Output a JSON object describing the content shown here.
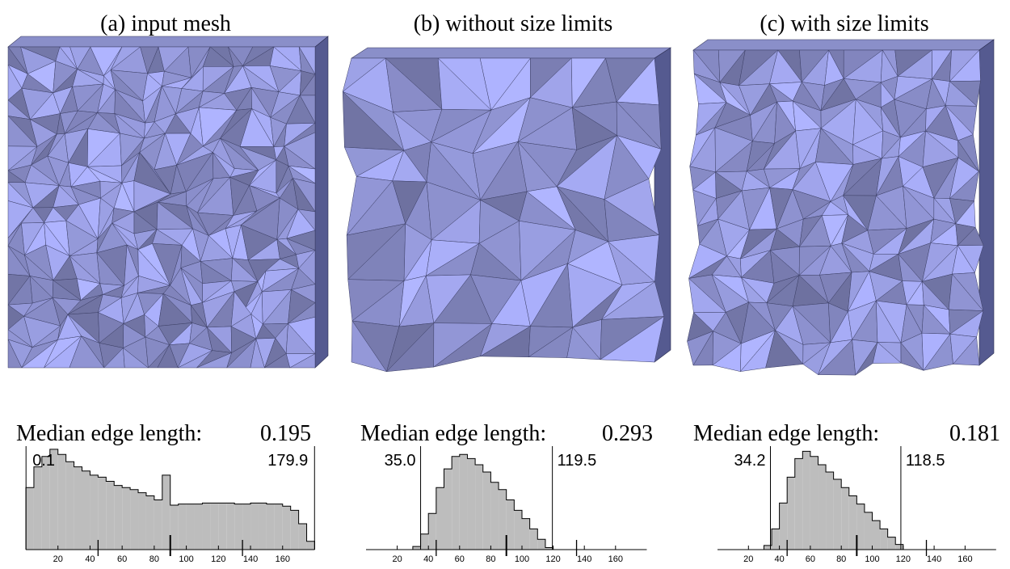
{
  "panels": [
    {
      "caption": "(a) input mesh",
      "median_label": "Median edge length:",
      "median_value": 0.195,
      "histogram": {
        "xlim": [
          0,
          180
        ],
        "xticks": [
          20,
          40,
          60,
          80,
          100,
          120,
          140,
          160
        ],
        "reference_angles": [
          45,
          90,
          135
        ],
        "min_angle": 0.1,
        "max_angle": 179.9,
        "bins": [
          0,
          5,
          10,
          15,
          20,
          25,
          30,
          35,
          40,
          45,
          50,
          55,
          60,
          65,
          70,
          75,
          80,
          85,
          90,
          95,
          100,
          105,
          110,
          115,
          120,
          125,
          130,
          135,
          140,
          145,
          150,
          155,
          160,
          165,
          170,
          175,
          180
        ],
        "counts": [
          60,
          80,
          90,
          97,
          92,
          85,
          80,
          76,
          72,
          70,
          66,
          62,
          60,
          58,
          55,
          52,
          48,
          72,
          43,
          44,
          44,
          44,
          45,
          45,
          45,
          45,
          44,
          44,
          45,
          45,
          44,
          44,
          42,
          38,
          25,
          8
        ]
      }
    },
    {
      "caption": "(b) without size limits",
      "median_label": "Median edge length:",
      "median_value": 0.293,
      "histogram": {
        "xlim": [
          0,
          180
        ],
        "xticks": [
          20,
          40,
          60,
          80,
          100,
          120,
          140,
          160
        ],
        "reference_angles": [
          45,
          90,
          135
        ],
        "min_angle": {
          "value": 35.0,
          "label": "35.0"
        },
        "max_angle": 119.5,
        "bins": [
          0,
          5,
          10,
          15,
          20,
          25,
          30,
          35,
          40,
          45,
          50,
          55,
          60,
          65,
          70,
          75,
          80,
          85,
          90,
          95,
          100,
          105,
          110,
          115,
          120,
          125,
          130,
          135,
          140,
          145,
          150,
          155,
          160,
          165,
          170,
          175,
          180
        ],
        "counts": [
          0,
          0,
          0,
          0,
          0,
          0,
          3,
          15,
          35,
          60,
          78,
          90,
          92,
          88,
          82,
          75,
          65,
          58,
          48,
          38,
          30,
          20,
          10,
          2,
          0,
          0,
          0,
          0,
          0,
          0,
          0,
          0,
          0,
          0,
          0,
          0
        ]
      }
    },
    {
      "caption": "(c) with size limits",
      "median_label": "Median edge length:",
      "median_value": 0.181,
      "histogram": {
        "xlim": [
          0,
          180
        ],
        "xticks": [
          20,
          40,
          60,
          80,
          100,
          120,
          140,
          160
        ],
        "reference_angles": [
          45,
          90,
          135
        ],
        "min_angle": 34.2,
        "max_angle": 118.5,
        "bins": [
          0,
          5,
          10,
          15,
          20,
          25,
          30,
          35,
          40,
          45,
          50,
          55,
          60,
          65,
          70,
          75,
          80,
          85,
          90,
          95,
          100,
          105,
          110,
          115,
          120,
          125,
          130,
          135,
          140,
          145,
          150,
          155,
          160,
          165,
          170,
          175,
          180
        ],
        "counts": [
          0,
          0,
          0,
          0,
          0,
          0,
          4,
          20,
          45,
          70,
          88,
          95,
          90,
          82,
          75,
          68,
          60,
          52,
          44,
          36,
          28,
          20,
          12,
          5,
          0,
          0,
          0,
          0,
          0,
          0,
          0,
          0,
          0,
          0,
          0,
          0
        ]
      }
    }
  ]
}
